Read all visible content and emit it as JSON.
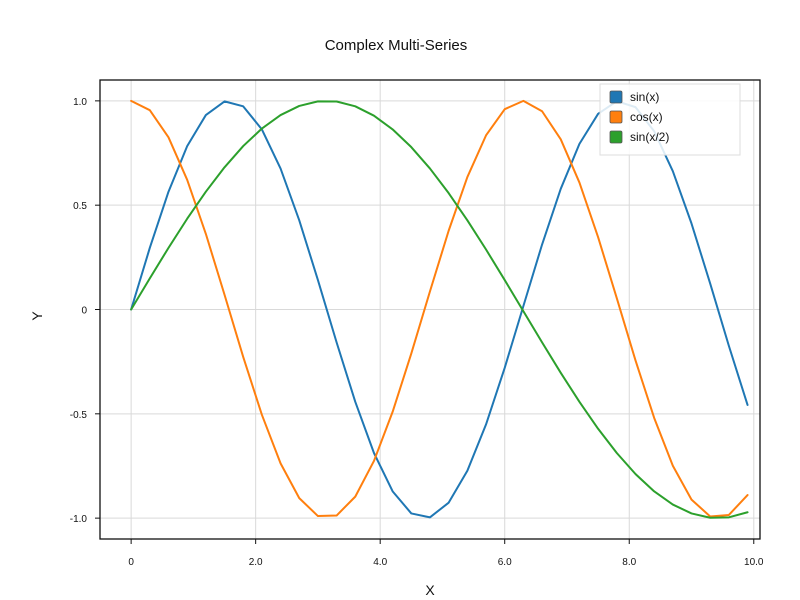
{
  "chart_data": {
    "type": "line",
    "title": "Complex Multi-Series",
    "xlabel": "X",
    "ylabel": "Y",
    "xlim": [
      -0.5,
      10.1
    ],
    "ylim": [
      -1.1,
      1.1
    ],
    "grid": true,
    "legend_position": "top-right",
    "x_ticks": [
      0,
      2,
      4,
      6,
      8,
      10
    ],
    "x_tick_labels": [
      "0",
      "2.0",
      "4.0",
      "6.0",
      "8.0",
      "10.0"
    ],
    "y_ticks": [
      1,
      0.5,
      0,
      -0.5,
      -1
    ],
    "y_tick_labels": [
      "1.0",
      "0.5",
      "0",
      "-0.5",
      "-1.0"
    ],
    "x": [
      0,
      0.3,
      0.6,
      0.9,
      1.2,
      1.5,
      1.8,
      2.1,
      2.4,
      2.7,
      3.0,
      3.3,
      3.6,
      3.9,
      4.2,
      4.5,
      4.8,
      5.1,
      5.4,
      5.7,
      6.0,
      6.3,
      6.6,
      6.9,
      7.2,
      7.5,
      7.8,
      8.1,
      8.4,
      8.7,
      9.0,
      9.3,
      9.6,
      9.9
    ],
    "series": [
      {
        "name": "sin(x)",
        "color": "#1f77b4",
        "values": [
          0.0,
          0.2955,
          0.5646,
          0.7833,
          0.932,
          0.9975,
          0.9738,
          0.8632,
          0.6755,
          0.4274,
          0.1411,
          -0.1577,
          -0.4425,
          -0.6878,
          -0.8716,
          -0.9775,
          -0.9962,
          -0.9258,
          -0.7728,
          -0.5507,
          -0.2794,
          0.0168,
          0.3115,
          0.5784,
          0.7937,
          0.938,
          0.9985,
          0.9699,
          0.8546,
          0.6628,
          0.4121,
          0.1245,
          -0.1743,
          -0.4575
        ]
      },
      {
        "name": "cos(x)",
        "color": "#ff7f0e",
        "values": [
          1.0,
          0.9553,
          0.8253,
          0.6216,
          0.3624,
          0.0707,
          -0.2272,
          -0.5048,
          -0.7374,
          -0.9041,
          -0.99,
          -0.9875,
          -0.8968,
          -0.7259,
          -0.4903,
          -0.2108,
          0.0875,
          0.378,
          0.6347,
          0.8347,
          0.9602,
          0.9999,
          0.9502,
          0.8157,
          0.6084,
          0.3466,
          0.054,
          -0.2435,
          -0.5193,
          -0.7487,
          -0.9111,
          -0.9922,
          -0.9848,
          -0.8892
        ]
      },
      {
        "name": "sin(x/2)",
        "color": "#2ca02c",
        "values": [
          0.0,
          0.1494,
          0.2955,
          0.435,
          0.5646,
          0.6816,
          0.7833,
          0.8674,
          0.932,
          0.9757,
          0.9975,
          0.997,
          0.9738,
          0.929,
          0.8632,
          0.7781,
          0.6755,
          0.5577,
          0.4274,
          0.2875,
          0.1411,
          -0.0084,
          -0.1577,
          -0.3035,
          -0.4425,
          -0.5716,
          -0.6878,
          -0.7885,
          -0.8716,
          -0.9349,
          -0.9775,
          -0.9981,
          -0.9962,
          -0.9719
        ]
      }
    ]
  }
}
